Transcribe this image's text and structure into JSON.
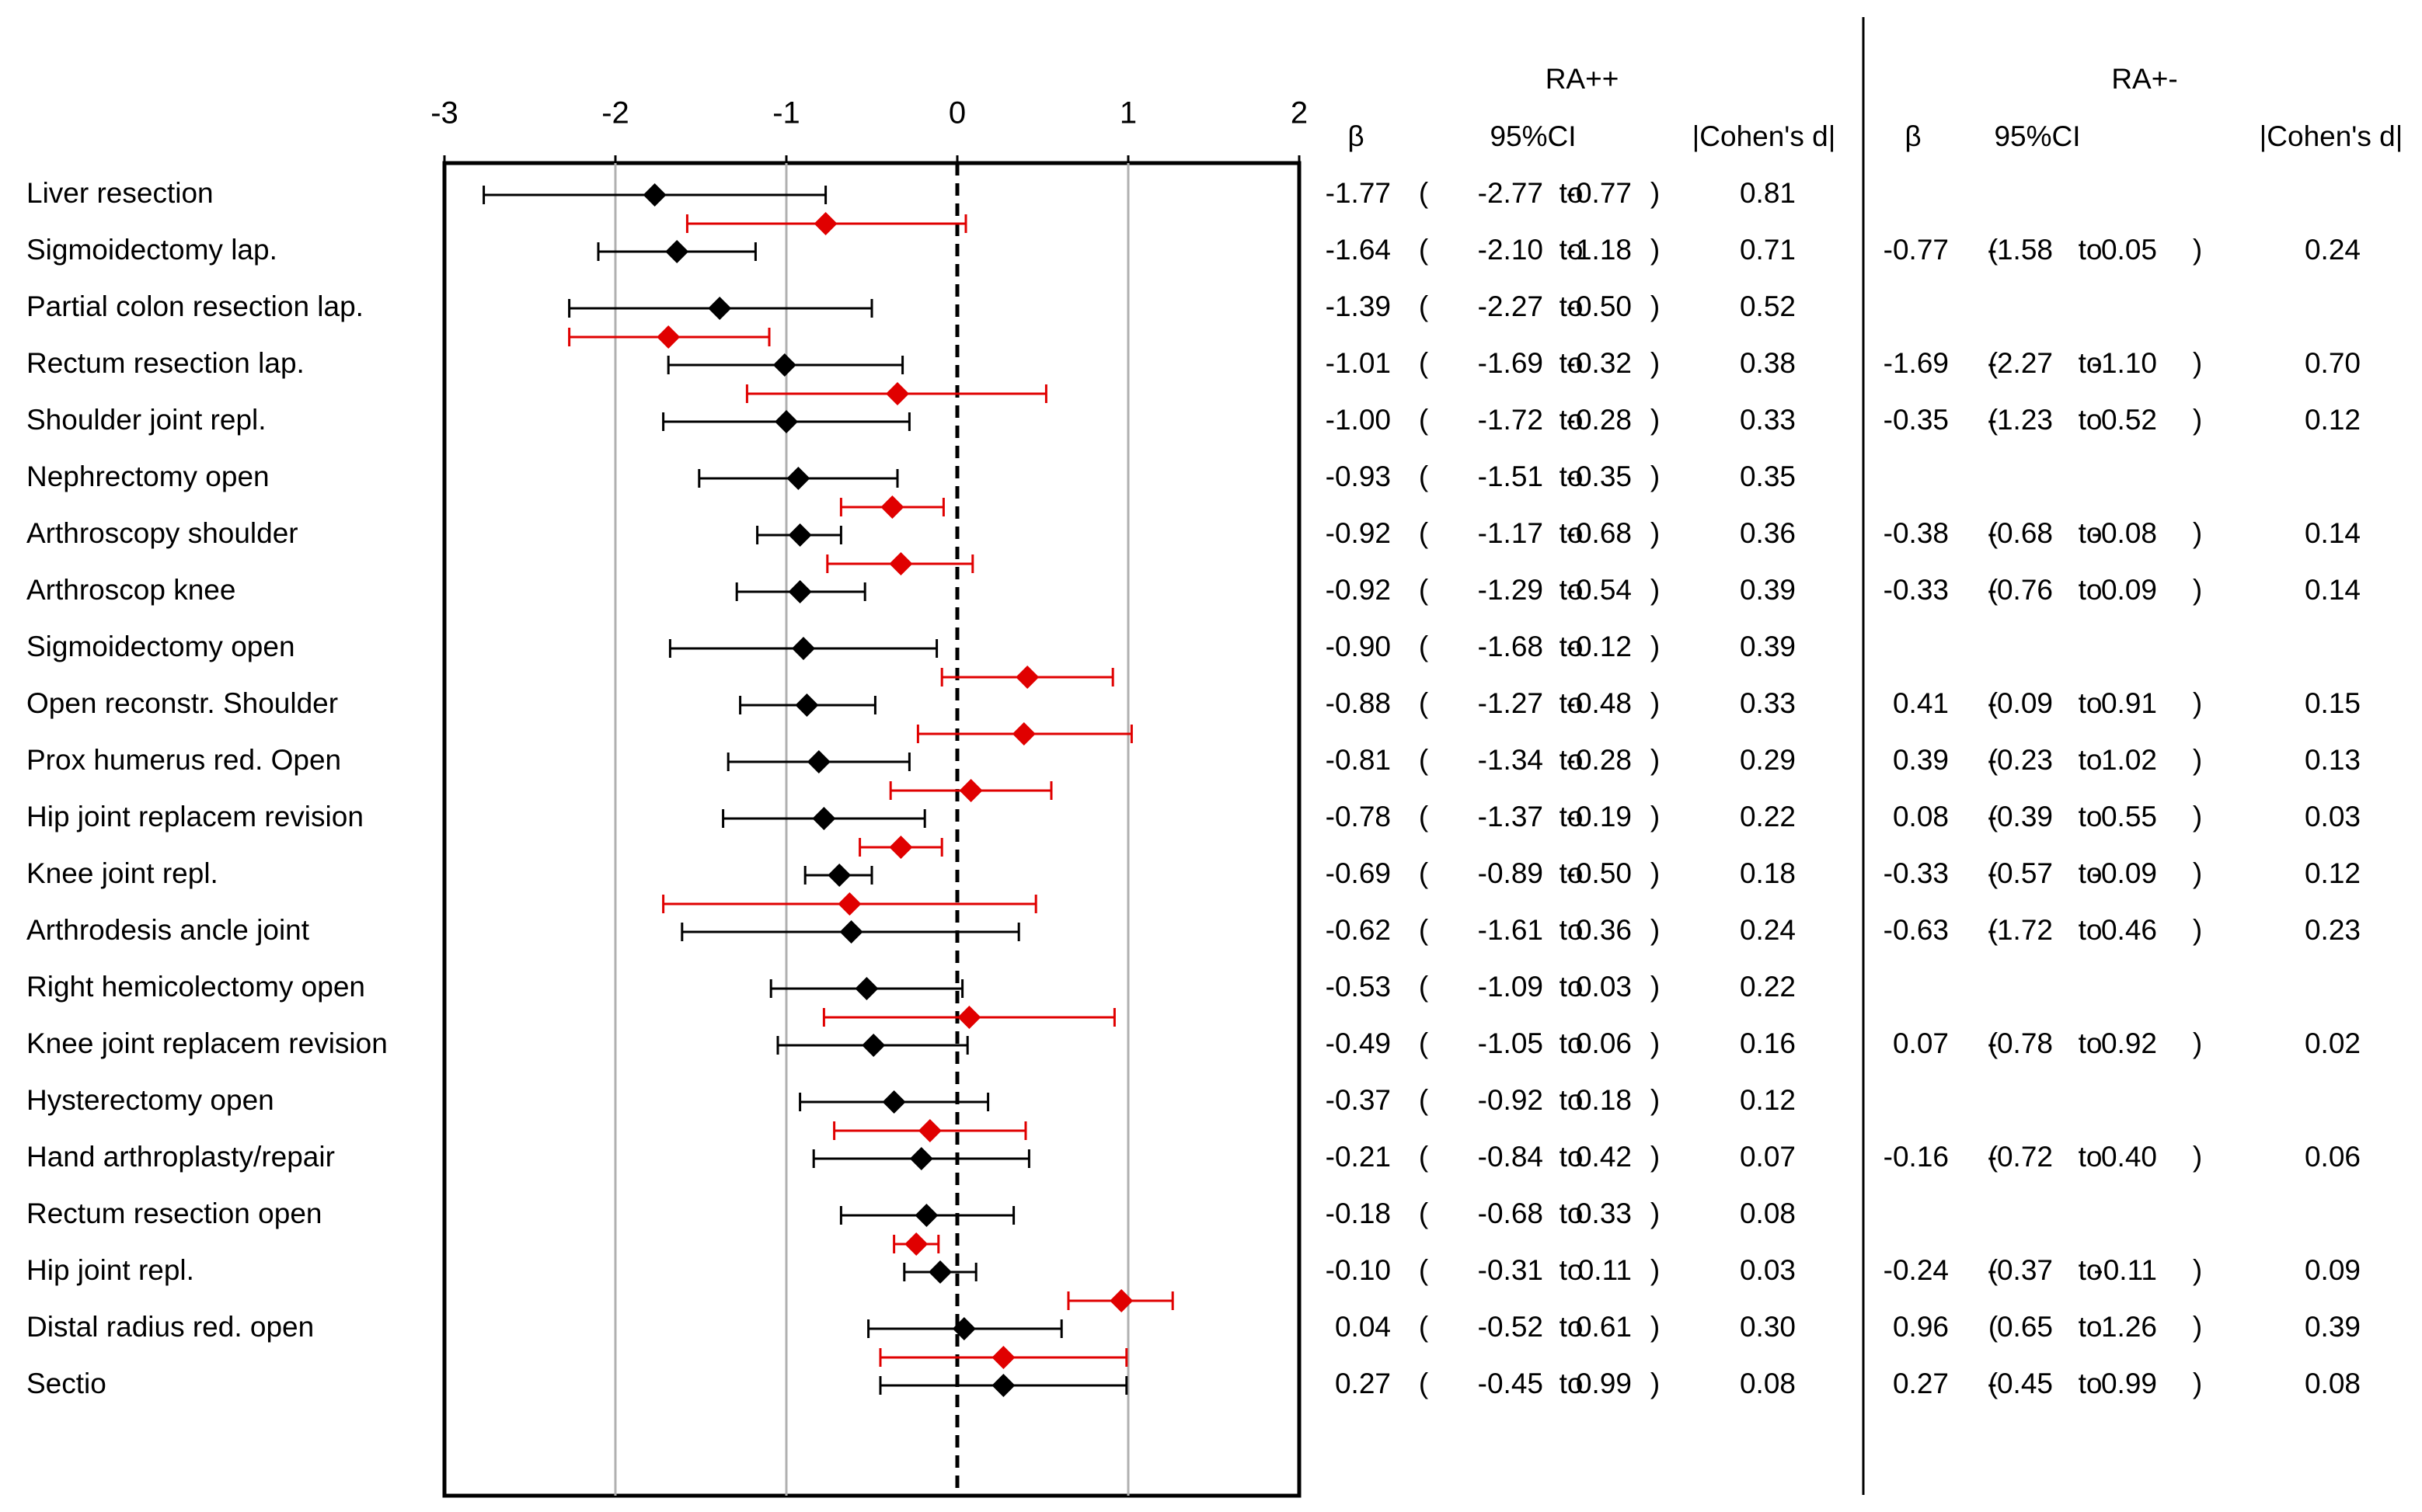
{
  "chart_data": {
    "type": "forest",
    "xlim": [
      -3,
      2
    ],
    "x_ticks": [
      "-3",
      "-2",
      "-1",
      "0",
      "1",
      "2"
    ],
    "groups": [
      {
        "name": "RA++",
        "color": "#000000"
      },
      {
        "name": "RA+-",
        "color": "#e00000"
      }
    ],
    "table_headers": {
      "group1_title": "RA++",
      "group2_title": "RA+-",
      "beta": "β",
      "ci": "95%CI",
      "d": "|Cohen's d|",
      "to": "to",
      "open_paren": "(",
      "close_paren": ")"
    },
    "rows": [
      {
        "label": "Liver resection",
        "rapp": {
          "beta": "-1.77",
          "lo": "-2.77",
          "hi": "-0.77",
          "d": "0.81"
        },
        "rapm": {
          "beta": "",
          "lo": "",
          "hi": "",
          "d": ""
        }
      },
      {
        "label": "Sigmoidectomy lap.",
        "rapp": {
          "beta": "-1.64",
          "lo": "-2.10",
          "hi": "-1.18",
          "d": "0.71"
        },
        "rapm": {
          "beta": "-0.77",
          "lo": "-1.58",
          "hi": "0.05",
          "d": "0.24"
        }
      },
      {
        "label": "Partial colon resection lap.",
        "rapp": {
          "beta": "-1.39",
          "lo": "-2.27",
          "hi": "-0.50",
          "d": "0.52"
        },
        "rapm": {
          "beta": "",
          "lo": "",
          "hi": "",
          "d": ""
        }
      },
      {
        "label": "Rectum resection lap.",
        "rapp": {
          "beta": "-1.01",
          "lo": "-1.69",
          "hi": "-0.32",
          "d": "0.38"
        },
        "rapm": {
          "beta": "-1.69",
          "lo": "-2.27",
          "hi": "-1.10",
          "d": "0.70"
        }
      },
      {
        "label": "Shoulder joint repl.",
        "rapp": {
          "beta": "-1.00",
          "lo": "-1.72",
          "hi": "-0.28",
          "d": "0.33"
        },
        "rapm": {
          "beta": "-0.35",
          "lo": "-1.23",
          "hi": "0.52",
          "d": "0.12"
        }
      },
      {
        "label": "Nephrectomy open",
        "rapp": {
          "beta": "-0.93",
          "lo": "-1.51",
          "hi": "-0.35",
          "d": "0.35"
        },
        "rapm": {
          "beta": "",
          "lo": "",
          "hi": "",
          "d": ""
        }
      },
      {
        "label": "Arthroscopy shoulder",
        "rapp": {
          "beta": "-0.92",
          "lo": "-1.17",
          "hi": "-0.68",
          "d": "0.36"
        },
        "rapm": {
          "beta": "-0.38",
          "lo": "-0.68",
          "hi": "-0.08",
          "d": "0.14"
        }
      },
      {
        "label": "Arthroscop knee",
        "rapp": {
          "beta": "-0.92",
          "lo": "-1.29",
          "hi": "-0.54",
          "d": "0.39"
        },
        "rapm": {
          "beta": "-0.33",
          "lo": "-0.76",
          "hi": "0.09",
          "d": "0.14"
        }
      },
      {
        "label": "Sigmoidectomy open",
        "rapp": {
          "beta": "-0.90",
          "lo": "-1.68",
          "hi": "-0.12",
          "d": "0.39"
        },
        "rapm": {
          "beta": "",
          "lo": "",
          "hi": "",
          "d": ""
        }
      },
      {
        "label": "Open reconstr. Shoulder",
        "rapp": {
          "beta": "-0.88",
          "lo": "-1.27",
          "hi": "-0.48",
          "d": "0.33"
        },
        "rapm": {
          "beta": "0.41",
          "lo": "-0.09",
          "hi": "0.91",
          "d": "0.15"
        }
      },
      {
        "label": "Prox humerus red. Open",
        "rapp": {
          "beta": "-0.81",
          "lo": "-1.34",
          "hi": "-0.28",
          "d": "0.29"
        },
        "rapm": {
          "beta": "0.39",
          "lo": "-0.23",
          "hi": "1.02",
          "d": "0.13"
        }
      },
      {
        "label": "Hip joint replacem revision",
        "rapp": {
          "beta": "-0.78",
          "lo": "-1.37",
          "hi": "-0.19",
          "d": "0.22"
        },
        "rapm": {
          "beta": "0.08",
          "lo": "-0.39",
          "hi": "0.55",
          "d": "0.03"
        }
      },
      {
        "label": "Knee joint repl.",
        "rapp": {
          "beta": "-0.69",
          "lo": "-0.89",
          "hi": "-0.50",
          "d": "0.18"
        },
        "rapm": {
          "beta": "-0.33",
          "lo": "-0.57",
          "hi": "-0.09",
          "d": "0.12"
        }
      },
      {
        "label": "Arthrodesis ancle joint",
        "rapp": {
          "beta": "-0.62",
          "lo": "-1.61",
          "hi": "0.36",
          "d": "0.24"
        },
        "rapm": {
          "beta": "-0.63",
          "lo": "-1.72",
          "hi": "0.46",
          "d": "0.23"
        }
      },
      {
        "label": "Right hemicolectomy open",
        "rapp": {
          "beta": "-0.53",
          "lo": "-1.09",
          "hi": "0.03",
          "d": "0.22"
        },
        "rapm": {
          "beta": "",
          "lo": "",
          "hi": "",
          "d": ""
        }
      },
      {
        "label": "Knee joint replacem revision",
        "rapp": {
          "beta": "-0.49",
          "lo": "-1.05",
          "hi": "0.06",
          "d": "0.16"
        },
        "rapm": {
          "beta": "0.07",
          "lo": "-0.78",
          "hi": "0.92",
          "d": "0.02"
        }
      },
      {
        "label": "Hysterectomy open",
        "rapp": {
          "beta": "-0.37",
          "lo": "-0.92",
          "hi": "0.18",
          "d": "0.12"
        },
        "rapm": {
          "beta": "",
          "lo": "",
          "hi": "",
          "d": ""
        }
      },
      {
        "label": "Hand arthroplasty/repair",
        "rapp": {
          "beta": "-0.21",
          "lo": "-0.84",
          "hi": "0.42",
          "d": "0.07"
        },
        "rapm": {
          "beta": "-0.16",
          "lo": "-0.72",
          "hi": "0.40",
          "d": "0.06"
        }
      },
      {
        "label": "Rectum resection open",
        "rapp": {
          "beta": "-0.18",
          "lo": "-0.68",
          "hi": "0.33",
          "d": "0.08"
        },
        "rapm": {
          "beta": "",
          "lo": "",
          "hi": "",
          "d": ""
        }
      },
      {
        "label": "Hip joint repl.",
        "rapp": {
          "beta": "-0.10",
          "lo": "-0.31",
          "hi": "0.11",
          "d": "0.03"
        },
        "rapm": {
          "beta": "-0.24",
          "lo": "-0.37",
          "hi": "-0.11",
          "d": "0.09"
        }
      },
      {
        "label": "Distal radius red. open",
        "rapp": {
          "beta": "0.04",
          "lo": "-0.52",
          "hi": "0.61",
          "d": "0.30"
        },
        "rapm": {
          "beta": "0.96",
          "lo": "0.65",
          "hi": "1.26",
          "d": "0.39"
        }
      },
      {
        "label": "Sectio",
        "rapp": {
          "beta": "0.27",
          "lo": "-0.45",
          "hi": "0.99",
          "d": "0.08"
        },
        "rapm": {
          "beta": "0.27",
          "lo": "-0.45",
          "hi": "0.99",
          "d": "0.08"
        }
      }
    ]
  }
}
